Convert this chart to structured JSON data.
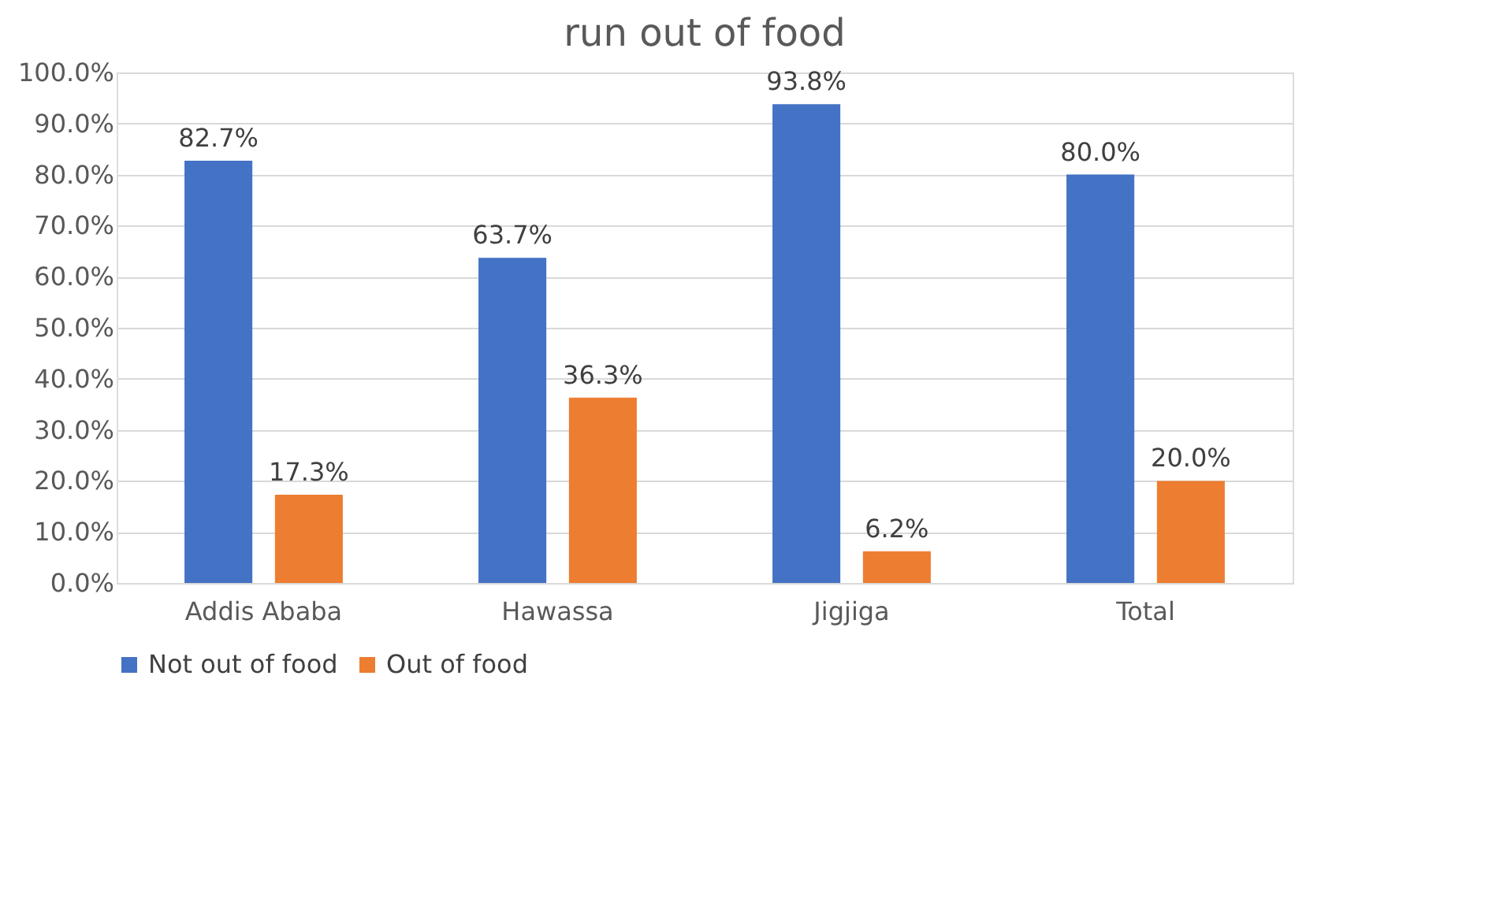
{
  "chart_data": {
    "type": "bar",
    "title": "run out of food",
    "categories": [
      "Addis Ababa",
      "Hawassa",
      "Jigjiga",
      "Total"
    ],
    "series": [
      {
        "name": "Not out of food",
        "color": "#4472c4",
        "values": [
          82.7,
          63.7,
          93.8,
          80.0
        ],
        "value_labels": [
          "82.7%",
          "63.7%",
          "93.8%",
          "80.0%"
        ]
      },
      {
        "name": "Out of food",
        "color": "#ed7d31",
        "values": [
          17.3,
          36.3,
          6.2,
          20.0
        ],
        "value_labels": [
          "17.3%",
          "36.3%",
          "6.2%",
          "20.0%"
        ]
      }
    ],
    "ylim": [
      0,
      100
    ],
    "yticks": [
      {
        "value": 0,
        "label": "0.0%"
      },
      {
        "value": 10,
        "label": "10.0%"
      },
      {
        "value": 20,
        "label": "20.0%"
      },
      {
        "value": 30,
        "label": "30.0%"
      },
      {
        "value": 40,
        "label": "40.0%"
      },
      {
        "value": 50,
        "label": "50.0%"
      },
      {
        "value": 60,
        "label": "60.0%"
      },
      {
        "value": 70,
        "label": "70.0%"
      },
      {
        "value": 80,
        "label": "80.0%"
      },
      {
        "value": 90,
        "label": "90.0%"
      },
      {
        "value": 100,
        "label": "100.0%"
      }
    ],
    "grid": "y",
    "legend": "bottom"
  }
}
